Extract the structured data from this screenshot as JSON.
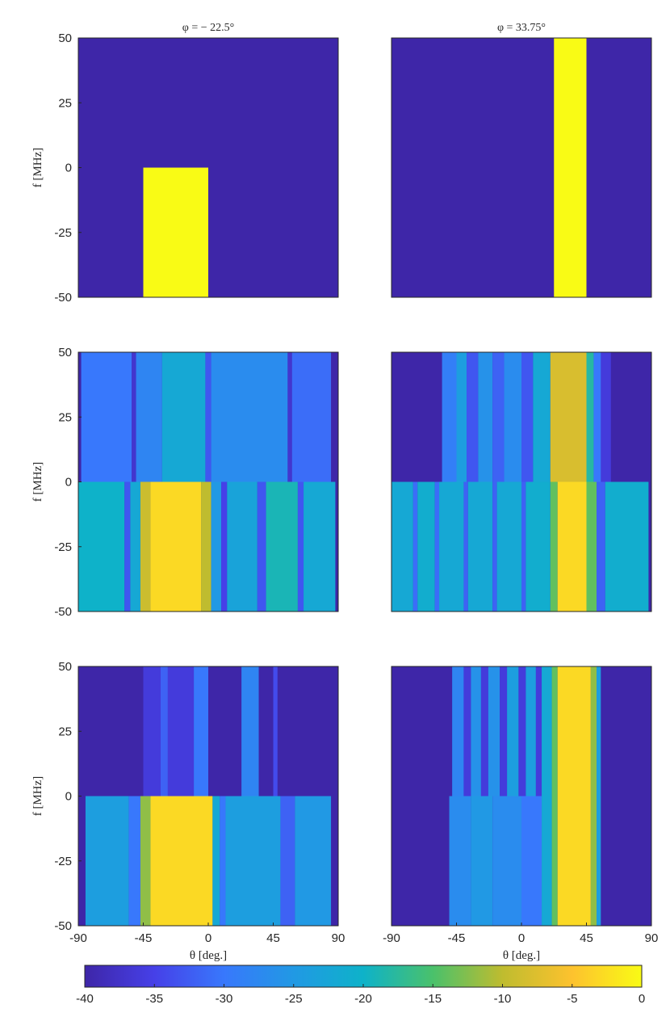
{
  "figure": {
    "colorbar": {
      "range": [
        -40,
        0
      ],
      "ticks": [
        -40,
        -35,
        -30,
        -25,
        -20,
        -15,
        -10,
        -5,
        0
      ],
      "colormap": "parula"
    },
    "axes_common": {
      "xlim": [
        -90,
        90
      ],
      "ylim": [
        -50,
        50
      ],
      "xticks": [
        -90,
        -45,
        0,
        45,
        90
      ],
      "yticks": [
        50,
        25,
        0,
        -25,
        -50
      ],
      "xlabel": "θ [deg.]",
      "ylabel": "f [MHz]"
    }
  },
  "chart_data": [
    {
      "type": "heatmap",
      "panel": "row1-col1",
      "title": "φ = − 22.5°",
      "background_dB": -40,
      "blocks": [
        {
          "theta": [
            -45,
            0
          ],
          "f": [
            -50,
            0
          ],
          "dB": 0
        }
      ]
    },
    {
      "type": "heatmap",
      "panel": "row1-col2",
      "title": "φ = 33.75°",
      "background_dB": -40,
      "blocks": [
        {
          "theta": [
            22.5,
            45
          ],
          "f": [
            -50,
            50
          ],
          "dB": 0
        }
      ]
    },
    {
      "type": "heatmap",
      "panel": "row2-col1",
      "description_bands": "f>0 weak sidelobes; f<0 strong mainlobe",
      "background_dB": -40,
      "bands_upper": [
        {
          "theta": [
            -88,
            -53
          ],
          "dB": -30
        },
        {
          "theta": [
            -53,
            -50
          ],
          "dB": -37
        },
        {
          "theta": [
            -50,
            -32
          ],
          "dB": -28
        },
        {
          "theta": [
            -32,
            -2
          ],
          "dB": -22
        },
        {
          "theta": [
            -2,
            2
          ],
          "dB": -33
        },
        {
          "theta": [
            2,
            55
          ],
          "dB": -27
        },
        {
          "theta": [
            55,
            58
          ],
          "dB": -37
        },
        {
          "theta": [
            58,
            85
          ],
          "dB": -31
        }
      ],
      "bands_lower": [
        {
          "theta": [
            -90,
            -58
          ],
          "dB": -20
        },
        {
          "theta": [
            -58,
            -54
          ],
          "dB": -33
        },
        {
          "theta": [
            -54,
            -47
          ],
          "dB": -22
        },
        {
          "theta": [
            -47,
            -40
          ],
          "dB": -9
        },
        {
          "theta": [
            -40,
            -5
          ],
          "dB": -3
        },
        {
          "theta": [
            -5,
            2
          ],
          "dB": -10
        },
        {
          "theta": [
            2,
            9
          ],
          "dB": -25
        },
        {
          "theta": [
            9,
            13
          ],
          "dB": -35
        },
        {
          "theta": [
            13,
            34
          ],
          "dB": -23
        },
        {
          "theta": [
            34,
            40
          ],
          "dB": -33
        },
        {
          "theta": [
            40,
            62
          ],
          "dB": -19
        },
        {
          "theta": [
            62,
            66
          ],
          "dB": -33
        },
        {
          "theta": [
            66,
            88
          ],
          "dB": -22
        }
      ]
    },
    {
      "type": "heatmap",
      "panel": "row2-col2",
      "background_dB": -40,
      "bands_upper": [
        {
          "theta": [
            -90,
            -55
          ],
          "dB": -40
        },
        {
          "theta": [
            -55,
            -45
          ],
          "dB": -29
        },
        {
          "theta": [
            -45,
            -38
          ],
          "dB": -24
        },
        {
          "theta": [
            -38,
            -30
          ],
          "dB": -33
        },
        {
          "theta": [
            -30,
            -20
          ],
          "dB": -26
        },
        {
          "theta": [
            -20,
            -12
          ],
          "dB": -32
        },
        {
          "theta": [
            -12,
            0
          ],
          "dB": -27
        },
        {
          "theta": [
            0,
            8
          ],
          "dB": -33
        },
        {
          "theta": [
            8,
            20
          ],
          "dB": -22
        },
        {
          "theta": [
            20,
            45
          ],
          "dB": -8
        },
        {
          "theta": [
            45,
            50
          ],
          "dB": -18
        },
        {
          "theta": [
            50,
            55
          ],
          "dB": -30
        },
        {
          "theta": [
            55,
            62
          ],
          "dB": -36
        },
        {
          "theta": [
            62,
            90
          ],
          "dB": -40
        }
      ],
      "bands_lower": [
        {
          "theta": [
            -90,
            -75
          ],
          "dB": -22
        },
        {
          "theta": [
            -75,
            -72
          ],
          "dB": -31
        },
        {
          "theta": [
            -72,
            -60
          ],
          "dB": -21
        },
        {
          "theta": [
            -60,
            -57
          ],
          "dB": -31
        },
        {
          "theta": [
            -57,
            -40
          ],
          "dB": -22
        },
        {
          "theta": [
            -40,
            -37
          ],
          "dB": -32
        },
        {
          "theta": [
            -37,
            -20
          ],
          "dB": -22
        },
        {
          "theta": [
            -20,
            -17
          ],
          "dB": -32
        },
        {
          "theta": [
            -17,
            0
          ],
          "dB": -22
        },
        {
          "theta": [
            0,
            3
          ],
          "dB": -32
        },
        {
          "theta": [
            3,
            20
          ],
          "dB": -21
        },
        {
          "theta": [
            20,
            25
          ],
          "dB": -14
        },
        {
          "theta": [
            25,
            45
          ],
          "dB": -3
        },
        {
          "theta": [
            45,
            52
          ],
          "dB": -14
        },
        {
          "theta": [
            52,
            58
          ],
          "dB": -32
        },
        {
          "theta": [
            58,
            88
          ],
          "dB": -21
        }
      ]
    },
    {
      "type": "heatmap",
      "panel": "row3-col1",
      "background_dB": -40,
      "bands_upper": [
        {
          "theta": [
            -90,
            -45
          ],
          "dB": -40
        },
        {
          "theta": [
            -45,
            -33
          ],
          "dB": -36
        },
        {
          "theta": [
            -33,
            -28
          ],
          "dB": -32
        },
        {
          "theta": [
            -28,
            -10
          ],
          "dB": -36
        },
        {
          "theta": [
            -10,
            0
          ],
          "dB": -30
        },
        {
          "theta": [
            0,
            23
          ],
          "dB": -40
        },
        {
          "theta": [
            23,
            35
          ],
          "dB": -28
        },
        {
          "theta": [
            35,
            45
          ],
          "dB": -40
        },
        {
          "theta": [
            45,
            48
          ],
          "dB": -34
        },
        {
          "theta": [
            48,
            90
          ],
          "dB": -40
        }
      ],
      "bands_lower": [
        {
          "theta": [
            -85,
            -55
          ],
          "dB": -24
        },
        {
          "theta": [
            -55,
            -47
          ],
          "dB": -30
        },
        {
          "theta": [
            -47,
            -40
          ],
          "dB": -12
        },
        {
          "theta": [
            -40,
            3
          ],
          "dB": -3
        },
        {
          "theta": [
            3,
            8
          ],
          "dB": -22
        },
        {
          "theta": [
            8,
            12
          ],
          "dB": -30
        },
        {
          "theta": [
            12,
            50
          ],
          "dB": -24
        },
        {
          "theta": [
            50,
            60
          ],
          "dB": -32
        },
        {
          "theta": [
            60,
            85
          ],
          "dB": -25
        }
      ]
    },
    {
      "type": "heatmap",
      "panel": "row3-col2",
      "background_dB": -40,
      "bands_upper": [
        {
          "theta": [
            -90,
            -48
          ],
          "dB": -40
        },
        {
          "theta": [
            -48,
            -40
          ],
          "dB": -28
        },
        {
          "theta": [
            -40,
            -35
          ],
          "dB": -36
        },
        {
          "theta": [
            -35,
            -28
          ],
          "dB": -26
        },
        {
          "theta": [
            -28,
            -23
          ],
          "dB": -36
        },
        {
          "theta": [
            -23,
            -15
          ],
          "dB": -26
        },
        {
          "theta": [
            -15,
            -10
          ],
          "dB": -36
        },
        {
          "theta": [
            -10,
            -2
          ],
          "dB": -24
        },
        {
          "theta": [
            -2,
            3
          ],
          "dB": -36
        },
        {
          "theta": [
            3,
            10
          ],
          "dB": -24
        },
        {
          "theta": [
            10,
            14
          ],
          "dB": -36
        },
        {
          "theta": [
            14,
            21
          ],
          "dB": -22
        },
        {
          "theta": [
            21,
            25
          ],
          "dB": -14
        },
        {
          "theta": [
            25,
            48
          ],
          "dB": -3
        },
        {
          "theta": [
            48,
            52
          ],
          "dB": -12
        },
        {
          "theta": [
            52,
            55
          ],
          "dB": -24
        },
        {
          "theta": [
            55,
            90
          ],
          "dB": -40
        }
      ],
      "bands_lower": [
        {
          "theta": [
            -90,
            -50
          ],
          "dB": -40
        },
        {
          "theta": [
            -50,
            -35
          ],
          "dB": -27
        },
        {
          "theta": [
            -35,
            -20
          ],
          "dB": -25
        },
        {
          "theta": [
            -20,
            0
          ],
          "dB": -27
        },
        {
          "theta": [
            0,
            14
          ],
          "dB": -30
        },
        {
          "theta": [
            14,
            21
          ],
          "dB": -22
        },
        {
          "theta": [
            21,
            25
          ],
          "dB": -14
        },
        {
          "theta": [
            25,
            48
          ],
          "dB": -3
        },
        {
          "theta": [
            48,
            52
          ],
          "dB": -12
        },
        {
          "theta": [
            52,
            55
          ],
          "dB": -24
        },
        {
          "theta": [
            55,
            90
          ],
          "dB": -40
        }
      ]
    }
  ]
}
